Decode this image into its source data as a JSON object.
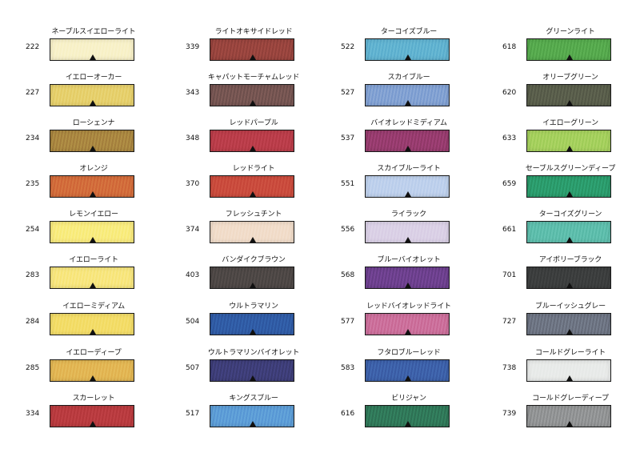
{
  "swatches": [
    [
      {
        "name": "ネープルスイエローライト",
        "code": "222",
        "color": "#f8f1c8"
      },
      {
        "name": "イエローオーカー",
        "code": "227",
        "color": "#e6cf6a"
      },
      {
        "name": "ローシェンナ",
        "code": "234",
        "color": "#a8843f"
      },
      {
        "name": "オレンジ",
        "code": "235",
        "color": "#d26a3a"
      },
      {
        "name": "レモンイエロー",
        "code": "254",
        "color": "#f9eb7c"
      },
      {
        "name": "イエローライト",
        "code": "283",
        "color": "#f8e67c"
      },
      {
        "name": "イエローミディアム",
        "code": "284",
        "color": "#f3dc66"
      },
      {
        "name": "イエローディープ",
        "code": "285",
        "color": "#e2b552"
      },
      {
        "name": "スカーレット",
        "code": "334",
        "color": "#b83a3e"
      }
    ],
    [
      {
        "name": "ライトオキサイドレッド",
        "code": "339",
        "color": "#96433d"
      },
      {
        "name": "キャパットモーチャムレッド",
        "code": "343",
        "color": "#735350"
      },
      {
        "name": "レッドパープル",
        "code": "348",
        "color": "#b93c48"
      },
      {
        "name": "レッドライト",
        "code": "370",
        "color": "#c94a3c"
      },
      {
        "name": "フレッシュチント",
        "code": "374",
        "color": "#f1dcc9"
      },
      {
        "name": "バンダイクブラウン",
        "code": "403",
        "color": "#4c4644"
      },
      {
        "name": "ウルトラマリン",
        "code": "504",
        "color": "#2f5aa4"
      },
      {
        "name": "ウルトラマリンバイオレット",
        "code": "507",
        "color": "#3d3d76"
      },
      {
        "name": "キングスブルー",
        "code": "517",
        "color": "#5b9bd6"
      }
    ],
    [
      {
        "name": "ターコイズブルー",
        "code": "522",
        "color": "#5fb1d0"
      },
      {
        "name": "スカイブルー",
        "code": "527",
        "color": "#7f9fd2"
      },
      {
        "name": "バイオレッドミディアム",
        "code": "537",
        "color": "#953b6c"
      },
      {
        "name": "スカイブルーライト",
        "code": "551",
        "color": "#bdd0ec"
      },
      {
        "name": "ライラック",
        "code": "556",
        "color": "#dad0e6"
      },
      {
        "name": "ブルーバイオレット",
        "code": "568",
        "color": "#6b3f8c"
      },
      {
        "name": "レッドバイオレッドライト",
        "code": "577",
        "color": "#cb6d99"
      },
      {
        "name": "フタロブルーレッド",
        "code": "583",
        "color": "#3c5fa8"
      },
      {
        "name": "ビリジャン",
        "code": "616",
        "color": "#2f7657"
      }
    ],
    [
      {
        "name": "グリーンライト",
        "code": "618",
        "color": "#54a84c"
      },
      {
        "name": "オリーブグリーン",
        "code": "620",
        "color": "#575c49"
      },
      {
        "name": "イエローグリーン",
        "code": "633",
        "color": "#a3cf5b"
      },
      {
        "name": "セーブルスグリーンディープ",
        "code": "659",
        "color": "#2a9a6a"
      },
      {
        "name": "ターコイズグリーン",
        "code": "661",
        "color": "#5cbcaa"
      },
      {
        "name": "アイボリーブラック",
        "code": "701",
        "color": "#3b3d3d"
      },
      {
        "name": "ブルーイッシュグレー",
        "code": "727",
        "color": "#6b7280"
      },
      {
        "name": "コールドグレーライト",
        "code": "738",
        "color": "#e8eae9"
      },
      {
        "name": "コールドグレーディープ",
        "code": "739",
        "color": "#909293"
      }
    ]
  ]
}
